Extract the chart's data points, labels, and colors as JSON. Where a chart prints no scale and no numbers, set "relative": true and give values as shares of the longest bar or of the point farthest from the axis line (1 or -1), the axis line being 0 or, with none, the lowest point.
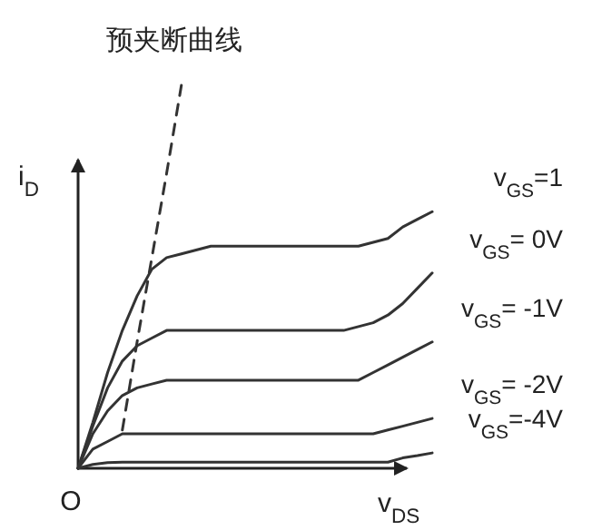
{
  "chart_data": {
    "type": "line",
    "relative": true,
    "xlabel": "v$_{DS}$",
    "ylabel": "i$_{D}$",
    "annotations": [
      "O"
    ],
    "categories": [
      null,
      null,
      null,
      null,
      null,
      null,
      null,
      null,
      null,
      null,
      null,
      null,
      null,
      null,
      null,
      null,
      null,
      null,
      null,
      null,
      null,
      null,
      null,
      null,
      null
    ],
    "series": [
      {
        "name": "v$_{GS}$=1",
        "color": "#333333",
        "values": [
          0,
          0.12,
          0.25,
          0.36,
          0.45,
          0.52,
          0.55,
          0.56,
          0.57,
          0.58,
          0.58,
          0.58,
          0.58,
          0.58,
          0.58,
          0.58,
          0.58,
          0.58,
          0.58,
          0.58,
          0.59,
          0.6,
          0.63,
          0.65,
          0.67
        ]
      },
      {
        "name": "v$_{GS}$= 0V",
        "color": "#333333",
        "values": [
          0,
          0.11,
          0.21,
          0.28,
          0.32,
          0.34,
          0.36,
          0.36,
          0.36,
          0.36,
          0.36,
          0.36,
          0.36,
          0.36,
          0.36,
          0.36,
          0.36,
          0.36,
          0.36,
          0.37,
          0.38,
          0.4,
          0.43,
          0.47,
          0.51
        ]
      },
      {
        "name": "v$_{GS}$= -1V",
        "color": "#333333",
        "values": [
          0,
          0.09,
          0.15,
          0.19,
          0.21,
          0.22,
          0.23,
          0.23,
          0.23,
          0.23,
          0.23,
          0.23,
          0.23,
          0.23,
          0.23,
          0.23,
          0.23,
          0.23,
          0.23,
          0.23,
          0.25,
          0.27,
          0.29,
          0.31,
          0.33
        ]
      },
      {
        "name": "v$_{GS}$= -2V",
        "color": "#333333",
        "values": [
          0,
          0.05,
          0.07,
          0.09,
          0.09,
          0.09,
          0.09,
          0.09,
          0.09,
          0.09,
          0.09,
          0.09,
          0.09,
          0.09,
          0.09,
          0.09,
          0.09,
          0.09,
          0.09,
          0.09,
          0.09,
          0.1,
          0.11,
          0.12,
          0.13
        ]
      },
      {
        "name": "v$_{GS}$=-4V",
        "color": "#333333",
        "values": [
          0,
          0.01,
          0.015,
          0.016,
          0.016,
          0.016,
          0.016,
          0.016,
          0.016,
          0.016,
          0.016,
          0.016,
          0.016,
          0.016,
          0.016,
          0.016,
          0.016,
          0.016,
          0.016,
          0.016,
          0.016,
          0.016,
          0.027,
          0.033,
          0.04
        ]
      },
      {
        "name": "预夹断曲线",
        "color": "#333333",
        "line_style": "dashed",
        "values": [
          null,
          null,
          null,
          0.1,
          0.33,
          0.55,
          0.77,
          1,
          null,
          null,
          null,
          null,
          null,
          null,
          null,
          null,
          null,
          null,
          null,
          null,
          null,
          null,
          null,
          null,
          null
        ]
      }
    ]
  }
}
